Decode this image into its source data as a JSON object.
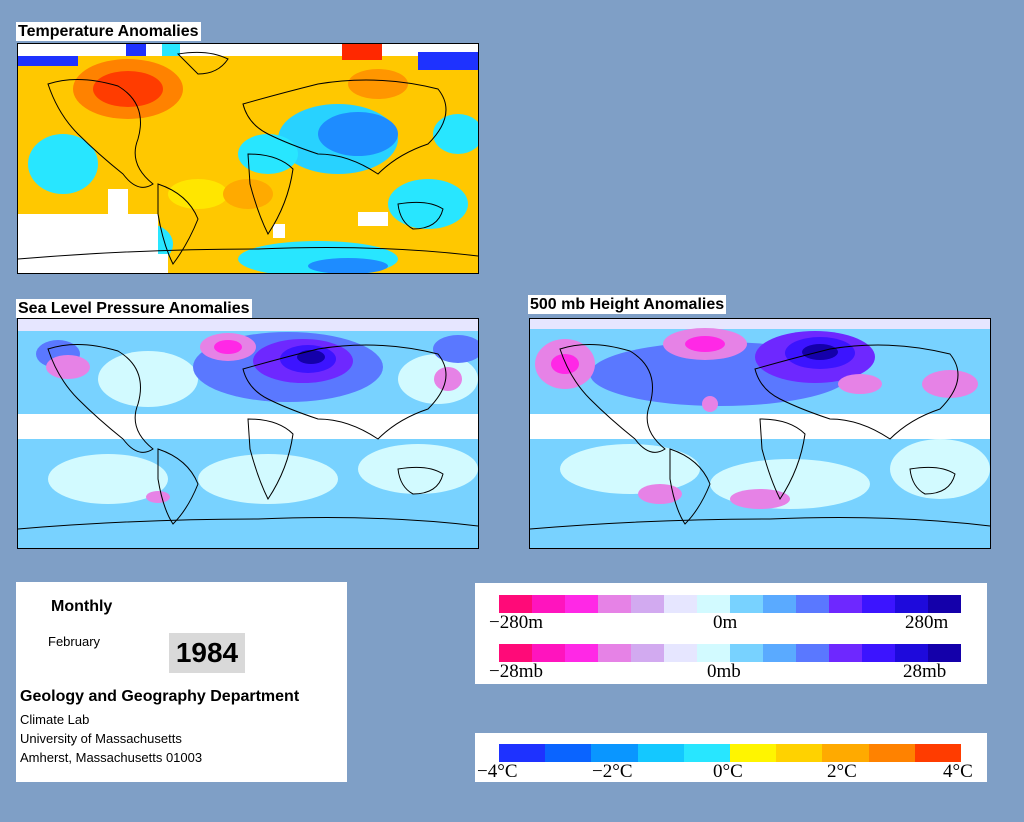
{
  "panels": {
    "temperature": {
      "title": "Temperature Anomalies"
    },
    "slp": {
      "title": "Sea Level Pressure Anomalies"
    },
    "height500": {
      "title": "500 mb Height Anomalies"
    }
  },
  "info": {
    "period": "Monthly",
    "month": "February",
    "year": "1984",
    "department": "Geology and Geography Department",
    "lab": "Climate Lab",
    "university": "University of Massachusetts",
    "address": "Amherst, Massachusetts 01003"
  },
  "legends": {
    "height": {
      "min": "−280m",
      "mid": "0m",
      "max": "280m"
    },
    "pressure": {
      "min": "−28mb",
      "mid": "0mb",
      "max": "28mb"
    },
    "temperature": {
      "t1": "−4°C",
      "t2": "−2°C",
      "t3": "0°C",
      "t4": "2°C",
      "t5": "4°C"
    }
  },
  "colors": {
    "background": "#7f9fc6",
    "diverging_scale": [
      "#ff0a78",
      "#ff14be",
      "#ff28e6",
      "#e682e6",
      "#d2aaf0",
      "#e6e6ff",
      "#d2faff",
      "#78d2ff",
      "#5aaaff",
      "#5a78ff",
      "#6e28ff",
      "#3c14ff",
      "#1e0adc",
      "#1400aa"
    ],
    "temperature_scale": [
      "#1e32ff",
      "#0a64ff",
      "#0a96ff",
      "#14c8ff",
      "#28e6ff",
      "#fff500",
      "#ffd200",
      "#ffaa00",
      "#ff8200",
      "#ff3c00"
    ]
  }
}
